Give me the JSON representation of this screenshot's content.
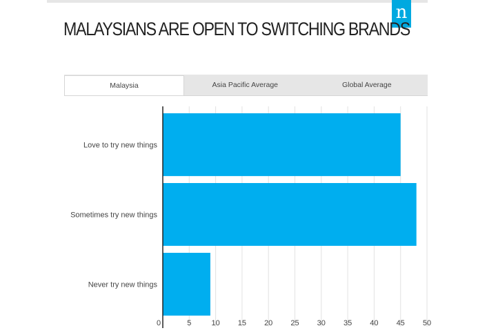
{
  "logo": {
    "glyph": "n",
    "color": "#00a9e0"
  },
  "title": "MALAYSIANS ARE OPEN TO SWITCHING BRANDS",
  "tabs": [
    {
      "label": "Malaysia",
      "active": true
    },
    {
      "label": "Asia Pacific Average",
      "active": false
    },
    {
      "label": "Global Average",
      "active": false
    }
  ],
  "chart_data": {
    "type": "bar",
    "orientation": "horizontal",
    "categories": [
      "Love to try new things",
      "Sometimes try new things",
      "Never try new things"
    ],
    "values": [
      45,
      48,
      9
    ],
    "xlim": [
      0,
      50
    ],
    "xticks": [
      0,
      5,
      10,
      15,
      20,
      25,
      30,
      35,
      40,
      45,
      50
    ],
    "grid": true,
    "bar_color": "#00aeef"
  }
}
